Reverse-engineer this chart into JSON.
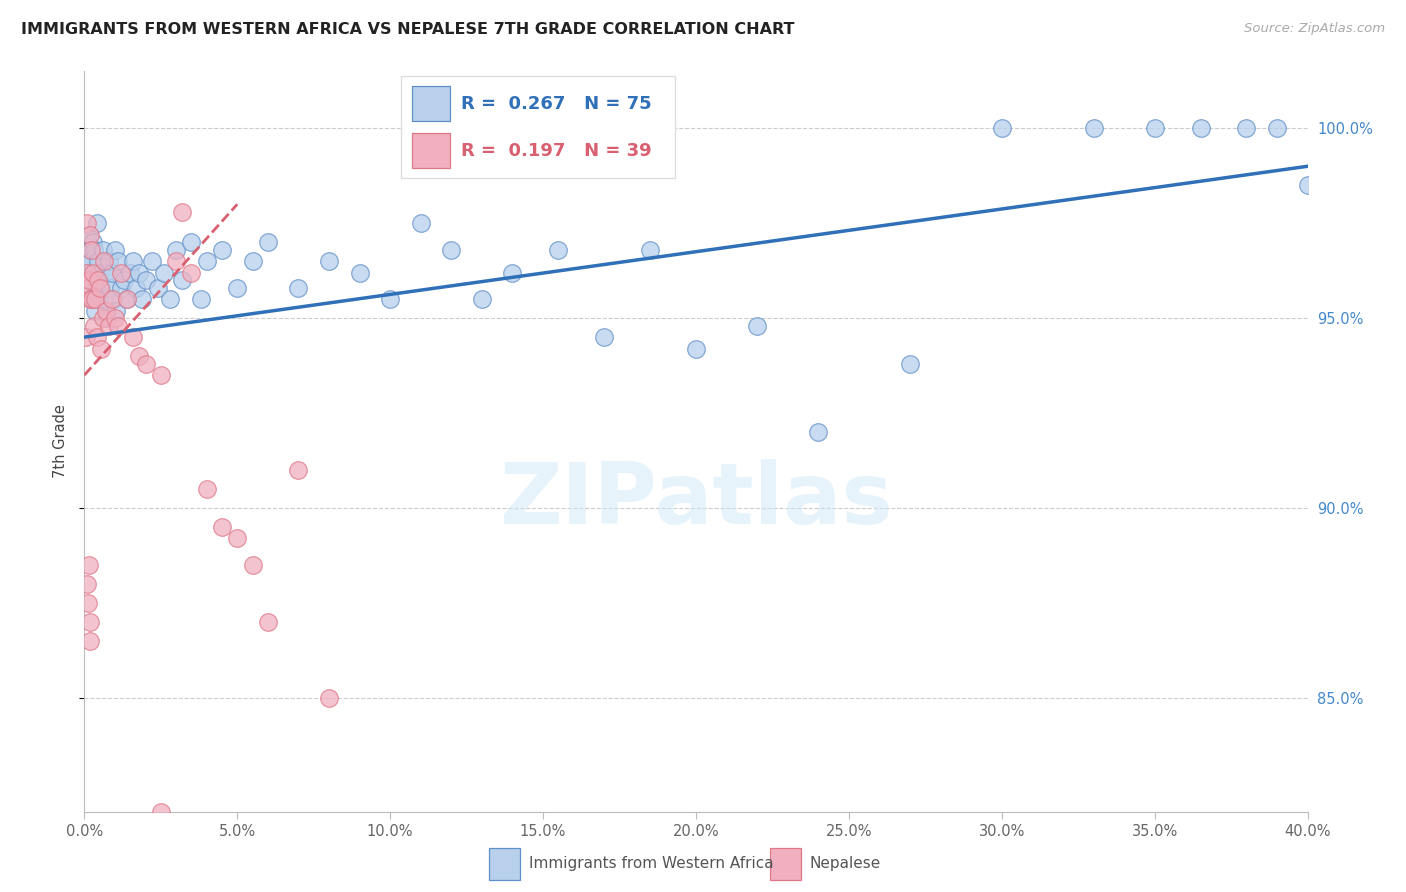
{
  "title": "IMMIGRANTS FROM WESTERN AFRICA VS NEPALESE 7TH GRADE CORRELATION CHART",
  "source": "Source: ZipAtlas.com",
  "ylabel": "7th Grade",
  "blue_R": 0.267,
  "blue_N": 75,
  "pink_R": 0.197,
  "pink_N": 39,
  "blue_dot_color": "#b8d0eb",
  "pink_dot_color": "#f0b0c0",
  "blue_edge_color": "#6090c8",
  "pink_edge_color": "#e07888",
  "blue_line_color": "#3070b8",
  "pink_line_color": "#d86070",
  "right_axis_color": "#4488cc",
  "blue_x": [
    0.05,
    0.08,
    0.1,
    0.12,
    0.15,
    0.18,
    0.2,
    0.22,
    0.25,
    0.28,
    0.3,
    0.32,
    0.35,
    0.38,
    0.4,
    0.42,
    0.45,
    0.48,
    0.5,
    0.55,
    0.6,
    0.65,
    0.7,
    0.75,
    0.8,
    0.85,
    0.9,
    0.95,
    1.0,
    1.05,
    1.1,
    1.2,
    1.3,
    1.4,
    1.5,
    1.6,
    1.7,
    1.8,
    1.9,
    2.0,
    2.2,
    2.4,
    2.6,
    2.8,
    3.0,
    3.2,
    3.5,
    3.8,
    4.0,
    4.5,
    5.0,
    5.5,
    6.0,
    7.0,
    8.0,
    9.0,
    10.0,
    11.0,
    12.0,
    13.0,
    14.0,
    15.5,
    17.0,
    18.5,
    20.0,
    22.0,
    24.0,
    27.0,
    30.0,
    33.0,
    35.0,
    36.5,
    38.0,
    39.0,
    40.0
  ],
  "blue_y": [
    96.8,
    97.0,
    96.5,
    96.2,
    97.2,
    96.8,
    95.8,
    96.5,
    96.0,
    97.0,
    95.5,
    96.8,
    95.2,
    96.0,
    97.5,
    95.8,
    96.5,
    95.5,
    96.2,
    95.8,
    96.8,
    95.5,
    96.2,
    95.0,
    96.5,
    95.8,
    96.2,
    95.5,
    96.8,
    95.2,
    96.5,
    95.8,
    96.0,
    95.5,
    96.2,
    96.5,
    95.8,
    96.2,
    95.5,
    96.0,
    96.5,
    95.8,
    96.2,
    95.5,
    96.8,
    96.0,
    97.0,
    95.5,
    96.5,
    96.8,
    95.8,
    96.5,
    97.0,
    95.8,
    96.5,
    96.2,
    95.5,
    97.5,
    96.8,
    95.5,
    96.2,
    96.8,
    94.5,
    96.8,
    94.2,
    94.8,
    92.0,
    93.8,
    100.0,
    100.0,
    100.0,
    100.0,
    100.0,
    100.0,
    98.5
  ],
  "pink_x": [
    0.05,
    0.08,
    0.1,
    0.12,
    0.15,
    0.18,
    0.2,
    0.22,
    0.25,
    0.28,
    0.3,
    0.35,
    0.4,
    0.45,
    0.5,
    0.55,
    0.6,
    0.65,
    0.7,
    0.8,
    0.9,
    1.0,
    1.1,
    1.2,
    1.4,
    1.6,
    1.8,
    2.0,
    2.5,
    3.0,
    3.2,
    3.5,
    4.0,
    4.5,
    5.0,
    5.5,
    6.0,
    7.0,
    8.0
  ],
  "pink_y": [
    94.5,
    96.2,
    97.5,
    95.8,
    96.0,
    95.5,
    97.2,
    96.8,
    95.5,
    96.2,
    94.8,
    95.5,
    94.5,
    96.0,
    95.8,
    94.2,
    95.0,
    96.5,
    95.2,
    94.8,
    95.5,
    95.0,
    94.8,
    96.2,
    95.5,
    94.5,
    94.0,
    93.8,
    93.5,
    96.5,
    97.8,
    96.2,
    90.5,
    89.5,
    89.2,
    88.5,
    87.0,
    91.0,
    85.0
  ],
  "pink_x_outliers": [
    0.1,
    0.12,
    0.15,
    0.18,
    0.2,
    2.5
  ],
  "pink_y_outliers": [
    88.0,
    87.5,
    88.5,
    87.0,
    86.5,
    82.0
  ]
}
